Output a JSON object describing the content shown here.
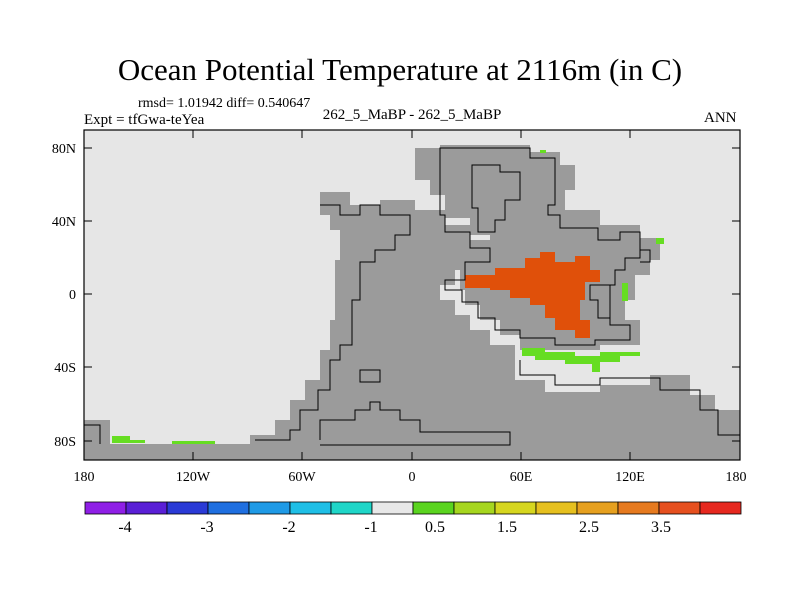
{
  "title": "Ocean Potential Temperature at 2116m (in C)",
  "stats": "rmsd= 1.01942 diff= 0.540647",
  "experiment": "Expt = tfGwa-teYea",
  "case_label": "262_5_MaBP - 262_5_MaBP",
  "season": "ANN",
  "lat_labels": [
    "80N",
    "40N",
    "0",
    "40S",
    "80S"
  ],
  "lon_labels": [
    "180",
    "120W",
    "60W",
    "0",
    "60E",
    "120E",
    "180"
  ],
  "colorbar": {
    "colors": [
      "#8f1fe6",
      "#5a1fd6",
      "#2a3ad6",
      "#1f6fe0",
      "#1f9ae6",
      "#1fbfe6",
      "#1fd6c8",
      "#e8e8e8",
      "#5ad41f",
      "#a6d61f",
      "#d6d61f",
      "#e6c01f",
      "#e6a01f",
      "#e67a1f",
      "#e6501f",
      "#e6281f"
    ],
    "labels": [
      "-4",
      "-3",
      "-2",
      "-1",
      "0.5",
      "1.5",
      "2.5",
      "3.5"
    ]
  },
  "legend_colors": {
    "land": "#9b9b9b",
    "ocean": "#e6e6e6",
    "positive_anomaly": "#e0500a",
    "weak_anomaly": "#66dd22"
  }
}
